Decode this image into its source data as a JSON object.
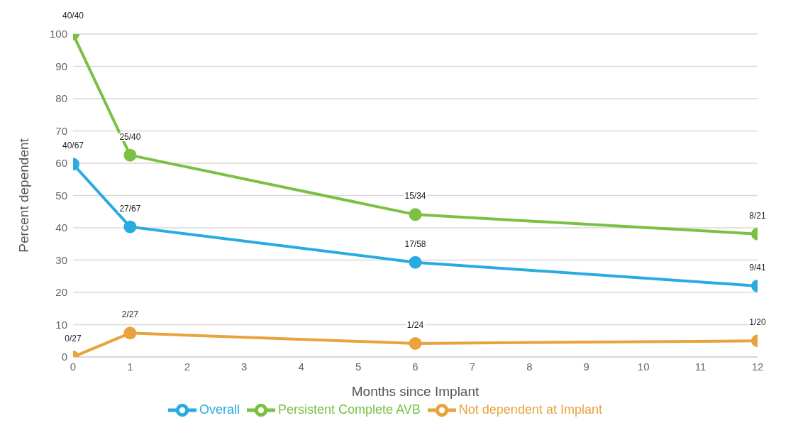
{
  "chart_data": {
    "type": "line",
    "xlabel": "Months since Implant",
    "ylabel": "Percent dependent",
    "x": [
      0,
      1,
      6,
      12
    ],
    "series": [
      {
        "name": "Overall",
        "color": "#29abe2",
        "values": [
          59.7,
          40.3,
          29.3,
          22.0
        ],
        "value_labels": [
          "40/67",
          "27/67",
          "17/58",
          "9/41"
        ]
      },
      {
        "name": "Persistent Complete AVB",
        "color": "#7ac143",
        "values": [
          100,
          62.5,
          44.1,
          38.1
        ],
        "value_labels": [
          "40/40",
          "25/40",
          "15/34",
          "8/21"
        ]
      },
      {
        "name": "Not dependent at Implant",
        "color": "#e8a33d",
        "values": [
          0,
          7.4,
          4.2,
          5.0
        ],
        "value_labels": [
          "0/27",
          "2/27",
          "1/24",
          "1/20"
        ]
      }
    ],
    "xlim": [
      0,
      12
    ],
    "xticks": [
      0,
      1,
      2,
      3,
      4,
      5,
      6,
      7,
      8,
      9,
      10,
      11,
      12
    ],
    "ylim": [
      0,
      100
    ],
    "yticks": [
      0,
      10,
      20,
      30,
      40,
      50,
      60,
      70,
      80,
      90,
      100
    ],
    "grid": "y",
    "legend": "bottom",
    "marker": "circle",
    "line_style": "solid"
  }
}
